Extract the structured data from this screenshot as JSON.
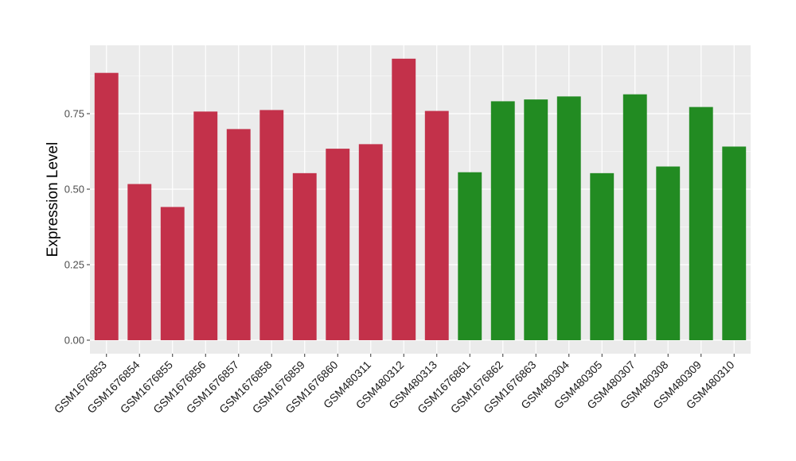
{
  "chart_data": {
    "type": "bar",
    "title": "",
    "xlabel": "",
    "ylabel": "Expression Level",
    "ylim": [
      0,
      0.98
    ],
    "yticks": [
      0.0,
      0.25,
      0.5,
      0.75
    ],
    "ytick_labels": [
      "0.00",
      "0.25",
      "0.50",
      "0.75"
    ],
    "grid": true,
    "categories": [
      "GSM1676853",
      "GSM1676854",
      "GSM1676855",
      "GSM1676856",
      "GSM1676857",
      "GSM1676858",
      "GSM1676859",
      "GSM1676860",
      "GSM480311",
      "GSM480312",
      "GSM480313",
      "GSM1676861",
      "GSM1676862",
      "GSM1676863",
      "GSM480304",
      "GSM480305",
      "GSM480307",
      "GSM480308",
      "GSM480309",
      "GSM480310"
    ],
    "values": [
      0.885,
      0.517,
      0.441,
      0.757,
      0.699,
      0.762,
      0.553,
      0.634,
      0.649,
      0.932,
      0.759,
      0.556,
      0.791,
      0.797,
      0.807,
      0.553,
      0.814,
      0.575,
      0.772,
      0.641
    ],
    "groups": [
      "red",
      "red",
      "red",
      "red",
      "red",
      "red",
      "red",
      "red",
      "red",
      "red",
      "red",
      "green",
      "green",
      "green",
      "green",
      "green",
      "green",
      "green",
      "green",
      "green"
    ],
    "group_colors": {
      "red": "#c3314a",
      "green": "#228b22"
    },
    "panel_background": "#ebebeb",
    "grid_color": "#ffffff",
    "legend": "none"
  }
}
